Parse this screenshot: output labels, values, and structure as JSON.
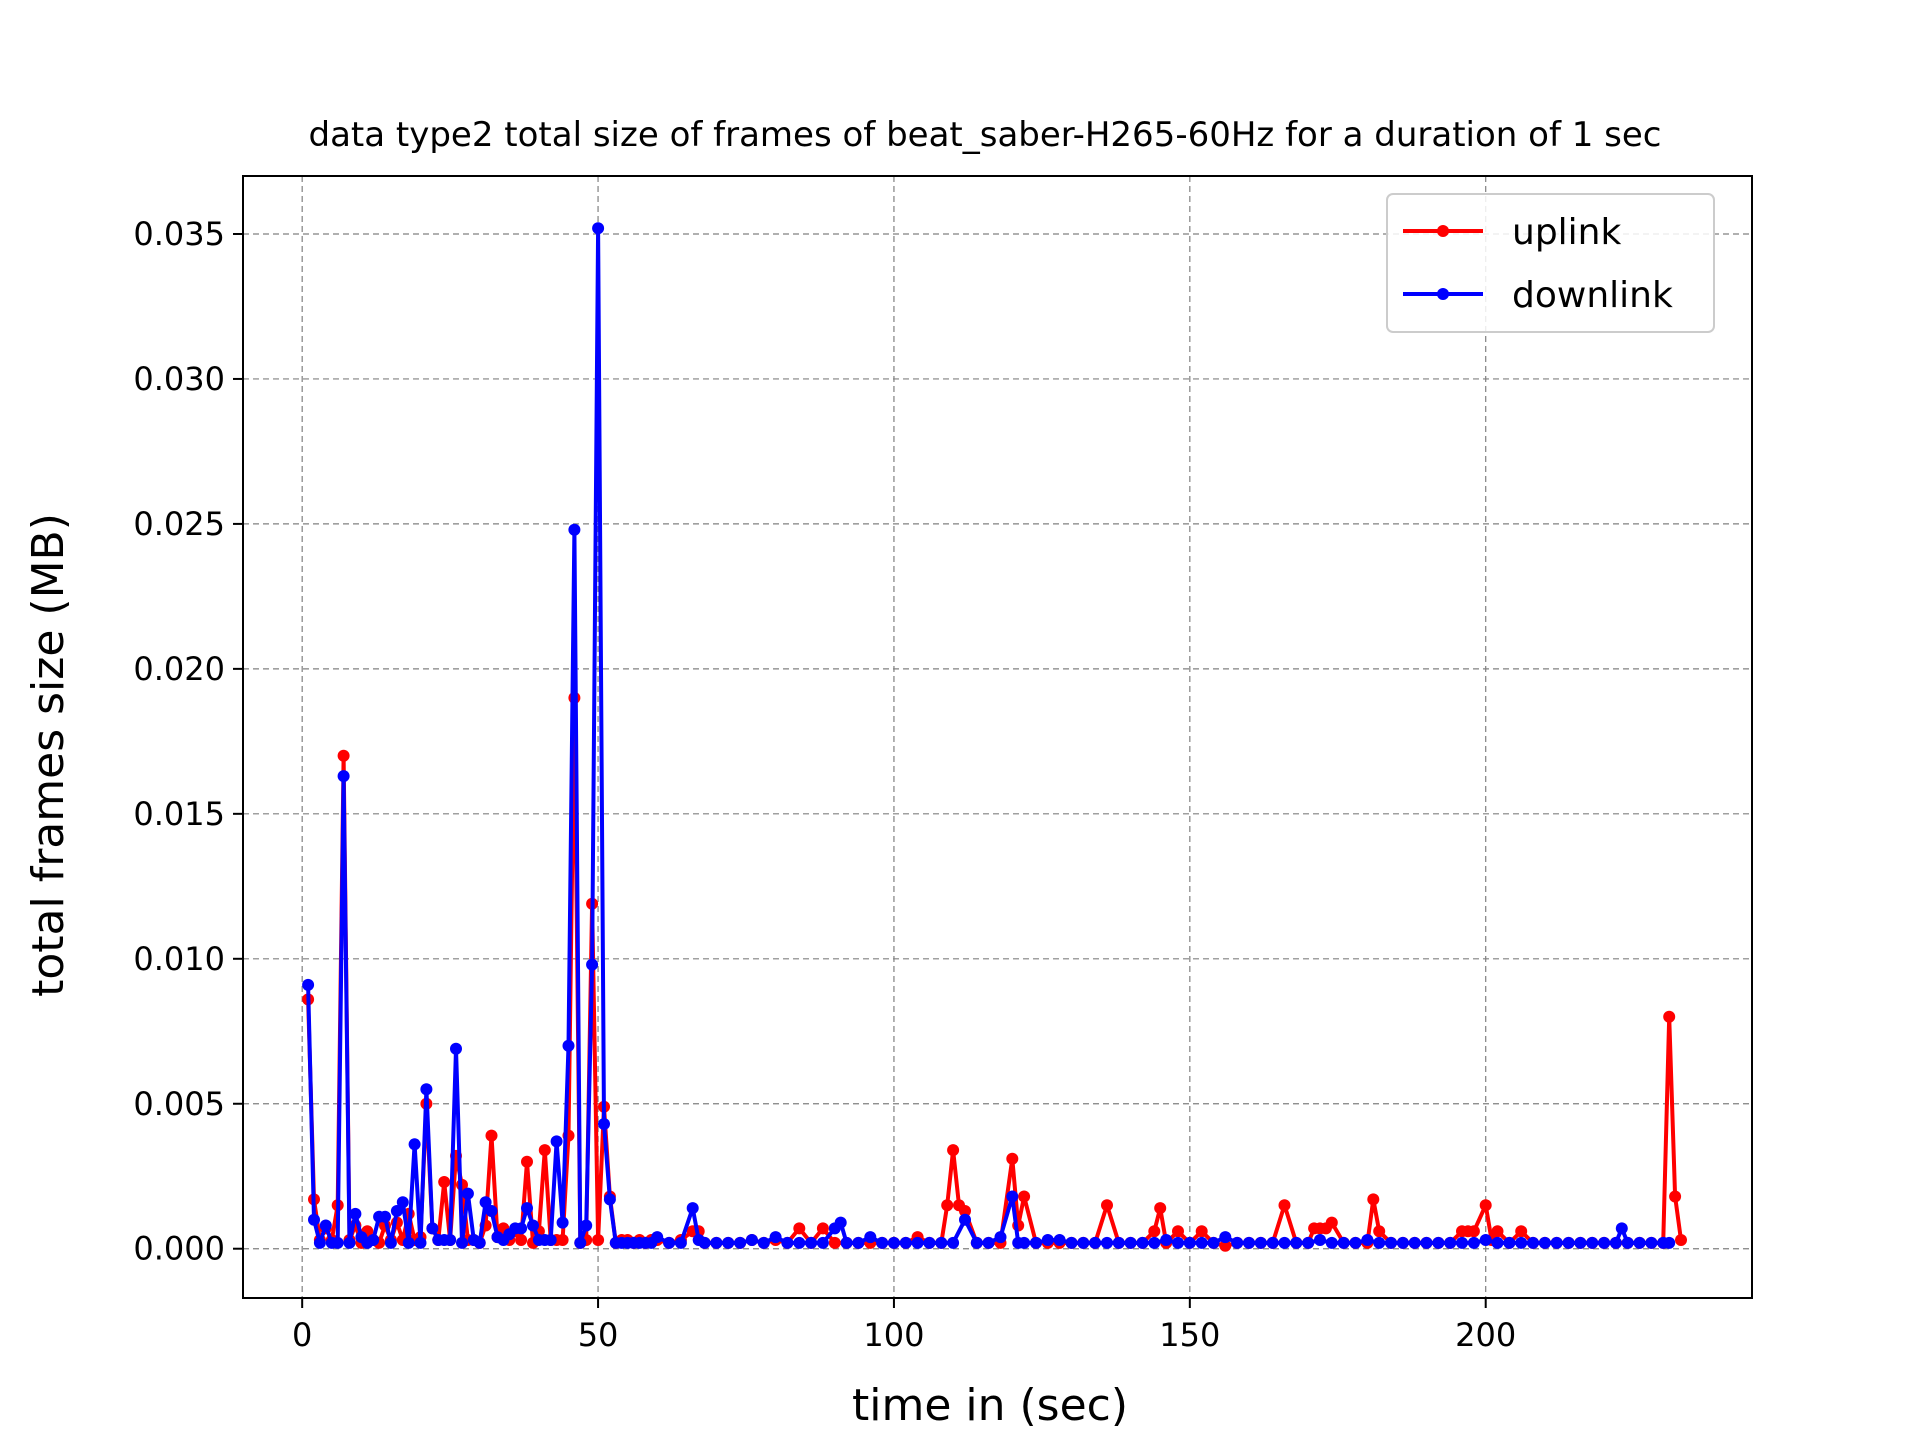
{
  "chart_data": {
    "type": "line",
    "title": "data type2 total size of frames of beat_saber-H265-60Hz for a duration of 1 sec",
    "xlabel": "time in (sec)",
    "ylabel": "total frames size (MB)",
    "xlim": [
      -10,
      245
    ],
    "ylim": [
      -0.0017,
      0.037
    ],
    "xticks": [
      0,
      50,
      100,
      150,
      200
    ],
    "yticks": [
      0.0,
      0.005,
      0.01,
      0.015,
      0.02,
      0.025,
      0.03,
      0.035
    ],
    "ytick_labels": [
      "0.000",
      "0.005",
      "0.010",
      "0.015",
      "0.020",
      "0.025",
      "0.030",
      "0.035"
    ],
    "xtick_labels": [
      "0",
      "50",
      "100",
      "150",
      "200"
    ],
    "grid": true,
    "legend_position": "top-right",
    "series": [
      {
        "name": "uplink",
        "color": "#ff0000",
        "x": [
          1,
          2,
          3,
          4,
          5,
          6,
          7,
          8,
          9,
          10,
          11,
          12,
          13,
          14,
          15,
          16,
          17,
          18,
          19,
          20,
          21,
          22,
          23,
          24,
          25,
          26,
          27,
          28,
          29,
          30,
          31,
          32,
          33,
          34,
          35,
          36,
          37,
          38,
          39,
          40,
          41,
          42,
          43,
          44,
          45,
          46,
          47,
          48,
          49,
          50,
          51,
          52,
          53,
          54,
          55,
          56,
          57,
          58,
          59,
          60,
          62,
          64,
          66,
          67,
          68,
          70,
          72,
          74,
          76,
          78,
          80,
          82,
          84,
          86,
          88,
          90,
          92,
          94,
          96,
          98,
          100,
          102,
          104,
          106,
          108,
          109,
          110,
          111,
          112,
          114,
          116,
          118,
          120,
          121,
          122,
          124,
          126,
          128,
          130,
          132,
          134,
          136,
          138,
          140,
          142,
          144,
          145,
          146,
          148,
          150,
          152,
          154,
          156,
          158,
          160,
          162,
          164,
          166,
          168,
          170,
          171,
          172,
          173,
          174,
          176,
          178,
          180,
          181,
          182,
          184,
          186,
          188,
          190,
          192,
          194,
          196,
          197,
          198,
          200,
          201,
          202,
          204,
          206,
          208,
          210,
          212,
          214,
          216,
          218,
          220,
          222,
          224,
          226,
          228,
          230,
          231,
          232,
          233
        ],
        "y": [
          0.0086,
          0.0017,
          0.0003,
          0.0007,
          0.0003,
          0.0015,
          0.017,
          0.0003,
          0.0008,
          0.0002,
          0.0006,
          0.0003,
          0.0002,
          0.0008,
          0.0003,
          0.0009,
          0.0003,
          0.0012,
          0.0003,
          0.0004,
          0.005,
          0.0007,
          0.0003,
          0.0023,
          0.0003,
          0.0032,
          0.0022,
          0.0003,
          0.0003,
          0.0002,
          0.0008,
          0.0039,
          0.0004,
          0.0007,
          0.0003,
          0.0006,
          0.0003,
          0.003,
          0.0002,
          0.0006,
          0.0034,
          0.0003,
          0.0003,
          0.0003,
          0.0039,
          0.019,
          0.0002,
          0.0003,
          0.0119,
          0.0003,
          0.0049,
          0.0018,
          0.0002,
          0.0003,
          0.0003,
          0.0002,
          0.0003,
          0.0002,
          0.0003,
          0.0003,
          0.0002,
          0.0003,
          0.0006,
          0.0006,
          0.0002,
          0.0002,
          0.0002,
          0.0002,
          0.0003,
          0.0002,
          0.0003,
          0.0002,
          0.0007,
          0.0002,
          0.0007,
          0.0002,
          0.0002,
          0.0002,
          0.0002,
          0.0002,
          0.0002,
          0.0002,
          0.0004,
          0.0002,
          0.0002,
          0.0015,
          0.0034,
          0.0015,
          0.0013,
          0.0002,
          0.0002,
          0.0002,
          0.0031,
          0.0008,
          0.0018,
          0.0002,
          0.0002,
          0.0002,
          0.0002,
          0.0002,
          0.0002,
          0.0015,
          0.0002,
          0.0002,
          0.0002,
          0.0006,
          0.0014,
          0.0002,
          0.0006,
          0.0002,
          0.0006,
          0.0002,
          0.0001,
          0.0002,
          0.0002,
          0.0002,
          0.0002,
          0.0015,
          0.0002,
          0.0002,
          0.0007,
          0.0007,
          0.0007,
          0.0009,
          0.0002,
          0.0002,
          0.0002,
          0.0017,
          0.0006,
          0.0002,
          0.0002,
          0.0002,
          0.0002,
          0.0002,
          0.0002,
          0.0006,
          0.0006,
          0.0006,
          0.0015,
          0.0003,
          0.0006,
          0.0002,
          0.0006,
          0.0002,
          0.0002,
          0.0002,
          0.0002,
          0.0002,
          0.0002,
          0.0002,
          0.0002,
          0.0002,
          0.0002,
          0.0002,
          0.0002,
          0.008,
          0.0018,
          0.0003
        ]
      },
      {
        "name": "downlink",
        "color": "#0000ff",
        "x": [
          1,
          2,
          3,
          4,
          5,
          6,
          7,
          8,
          9,
          10,
          11,
          12,
          13,
          14,
          15,
          16,
          17,
          18,
          19,
          20,
          21,
          22,
          23,
          24,
          25,
          26,
          27,
          28,
          29,
          30,
          31,
          32,
          33,
          34,
          35,
          36,
          37,
          38,
          39,
          40,
          41,
          42,
          43,
          44,
          45,
          46,
          47,
          48,
          49,
          50,
          51,
          52,
          53,
          54,
          55,
          56,
          57,
          58,
          59,
          60,
          62,
          64,
          66,
          67,
          68,
          70,
          72,
          74,
          76,
          78,
          80,
          82,
          84,
          86,
          88,
          90,
          91,
          92,
          94,
          96,
          98,
          100,
          102,
          104,
          106,
          108,
          110,
          112,
          114,
          116,
          118,
          120,
          121,
          122,
          124,
          126,
          128,
          130,
          132,
          134,
          136,
          138,
          140,
          142,
          144,
          146,
          148,
          150,
          152,
          154,
          156,
          158,
          160,
          162,
          164,
          166,
          168,
          170,
          172,
          174,
          176,
          178,
          180,
          182,
          184,
          186,
          188,
          190,
          192,
          194,
          196,
          198,
          200,
          202,
          204,
          206,
          208,
          210,
          212,
          214,
          216,
          218,
          220,
          222,
          223,
          224,
          226,
          228,
          230,
          231
        ],
        "y": [
          0.0091,
          0.001,
          0.0002,
          0.0008,
          0.0002,
          0.0002,
          0.0163,
          0.0002,
          0.0012,
          0.0004,
          0.0002,
          0.0003,
          0.0011,
          0.0011,
          0.0002,
          0.0013,
          0.0016,
          0.0002,
          0.0036,
          0.0002,
          0.0055,
          0.0007,
          0.0003,
          0.0003,
          0.0003,
          0.0069,
          0.0002,
          0.0019,
          0.0003,
          0.0002,
          0.0016,
          0.0013,
          0.0004,
          0.0003,
          0.0005,
          0.0007,
          0.0007,
          0.0014,
          0.0008,
          0.0003,
          0.0003,
          0.0003,
          0.0037,
          0.0009,
          0.007,
          0.0248,
          0.0002,
          0.0008,
          0.0098,
          0.0352,
          0.0043,
          0.0017,
          0.0002,
          0.0002,
          0.0002,
          0.0002,
          0.0002,
          0.0002,
          0.0002,
          0.0004,
          0.0002,
          0.0002,
          0.0014,
          0.0003,
          0.0002,
          0.0002,
          0.0002,
          0.0002,
          0.0003,
          0.0002,
          0.0004,
          0.0002,
          0.0002,
          0.0002,
          0.0002,
          0.0007,
          0.0009,
          0.0002,
          0.0002,
          0.0004,
          0.0002,
          0.0002,
          0.0002,
          0.0002,
          0.0002,
          0.0002,
          0.0002,
          0.001,
          0.0002,
          0.0002,
          0.0004,
          0.0018,
          0.0002,
          0.0002,
          0.0002,
          0.0003,
          0.0003,
          0.0002,
          0.0002,
          0.0002,
          0.0002,
          0.0002,
          0.0002,
          0.0002,
          0.0002,
          0.0003,
          0.0002,
          0.0002,
          0.0002,
          0.0002,
          0.0004,
          0.0002,
          0.0002,
          0.0002,
          0.0002,
          0.0002,
          0.0002,
          0.0002,
          0.0003,
          0.0002,
          0.0002,
          0.0002,
          0.0003,
          0.0002,
          0.0002,
          0.0002,
          0.0002,
          0.0002,
          0.0002,
          0.0002,
          0.0002,
          0.0002,
          0.0003,
          0.0002,
          0.0002,
          0.0002,
          0.0002,
          0.0002,
          0.0002,
          0.0002,
          0.0002,
          0.0002,
          0.0002,
          0.0002,
          0.0007,
          0.0002,
          0.0002,
          0.0002,
          0.0002,
          0.0002
        ]
      }
    ]
  }
}
